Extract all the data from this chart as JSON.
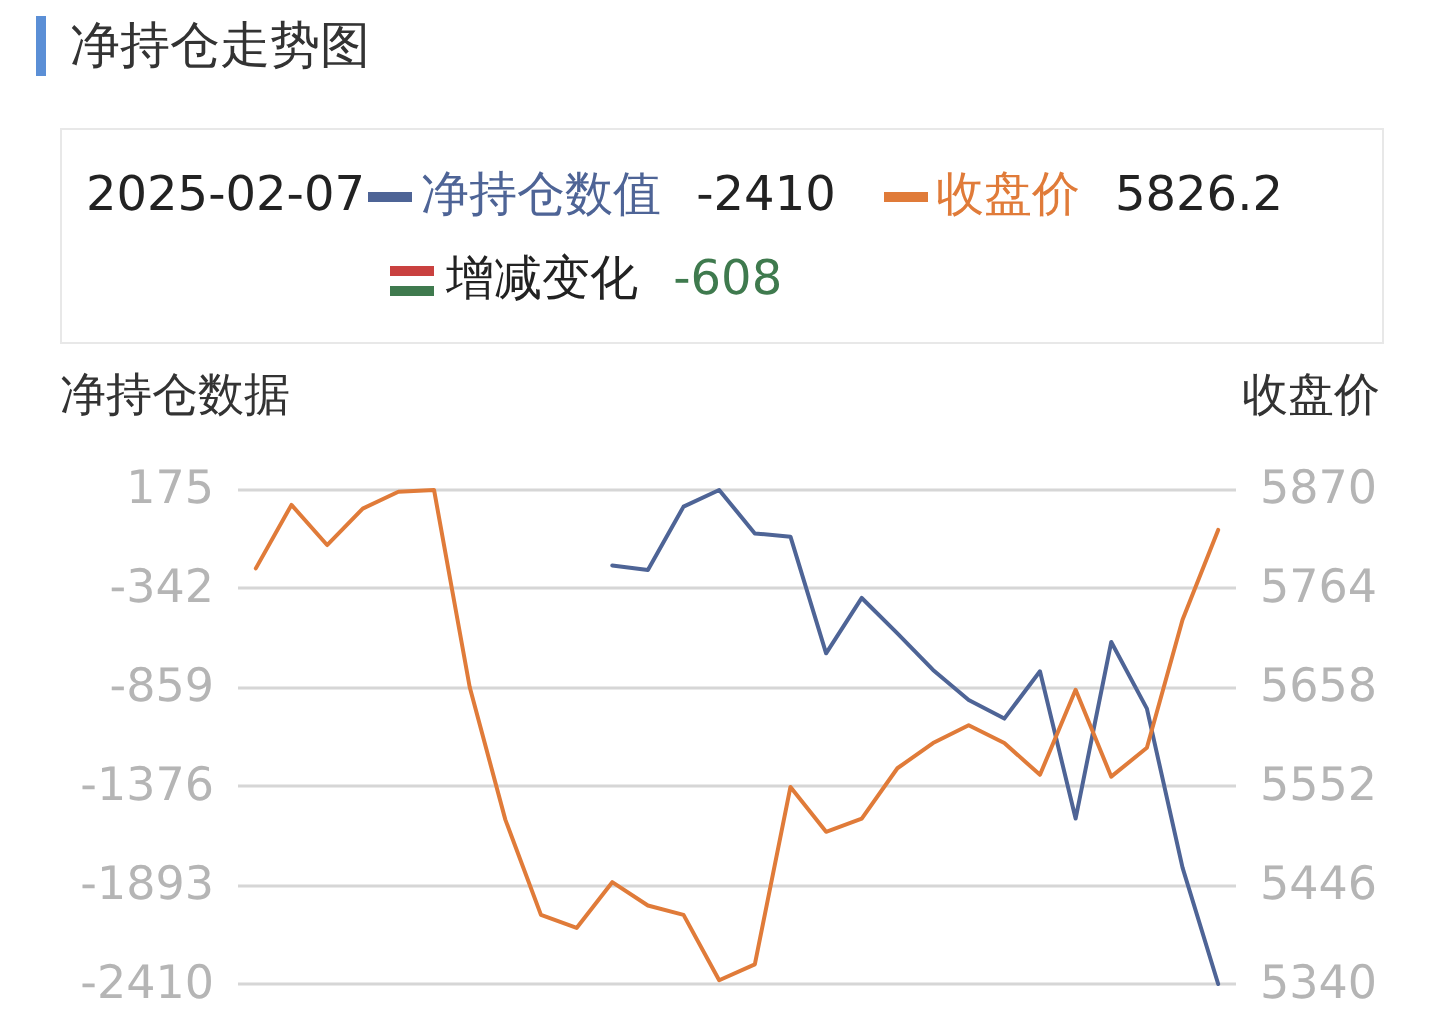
{
  "chart_data": {
    "type": "line",
    "title": "净持仓走势图",
    "ylabel": "净持仓数据",
    "y2label": "收盘价",
    "annotations": [
      "2025-02-07",
      "-2410",
      "5826.2",
      "增减变化",
      "-608"
    ],
    "categories": [
      null,
      null,
      null,
      null,
      null,
      null,
      null,
      null,
      null,
      null,
      null,
      null,
      null,
      null,
      null,
      null,
      null,
      null,
      null,
      null,
      null,
      null,
      null,
      null,
      null,
      null,
      null,
      null
    ],
    "series": [
      {
        "name": "净持仓数值",
        "color": "#4e6496",
        "values": [
          null,
          null,
          null,
          null,
          null,
          null,
          null,
          null,
          null,
          null,
          -224,
          -248,
          83,
          170,
          -57,
          -74,
          -683,
          -394,
          -579,
          -770,
          -927,
          -1024,
          -777,
          -1546,
          -624,
          -972,
          -1802,
          -2410
        ]
      },
      {
        "name": "收盘价",
        "color": "#e07b39",
        "axis": "y2",
        "values": [
          5785,
          5853,
          5810,
          5849,
          5867,
          5869,
          5658,
          5516,
          5414,
          5400,
          5449,
          5424,
          5414,
          5344,
          5361,
          5551,
          5503,
          5517,
          5571,
          5598,
          5617,
          5598,
          5564,
          5655,
          5562,
          5593,
          5730,
          5826.2
        ]
      }
    ],
    "ylim": [
      -2410,
      175
    ],
    "yticks": [
      -2410,
      -1893,
      -1376,
      -859,
      -342,
      175
    ],
    "y2lim": [
      5340,
      5870
    ],
    "y2ticks": [
      5340,
      5446,
      5552,
      5658,
      5764,
      5870
    ],
    "grid": "y",
    "legend": "top",
    "marker": "none",
    "line_style": "solid"
  }
}
